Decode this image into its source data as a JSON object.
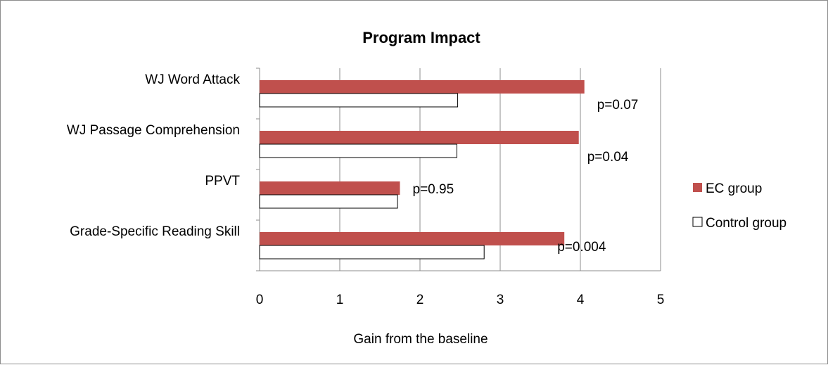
{
  "chart_data": {
    "type": "bar",
    "orientation": "horizontal",
    "title": "Program Impact",
    "xlabel": "Gain from the baseline",
    "ylabel": "",
    "xlim": [
      0,
      5
    ],
    "x_ticks": [
      "0",
      "1",
      "2",
      "3",
      "4",
      "5"
    ],
    "grid": true,
    "legend": "right",
    "categories": [
      "WJ Word Attack",
      "WJ Passage Comprehension",
      "PPVT",
      "Grade-Specific Reading Skill"
    ],
    "series": [
      {
        "name": "EC group",
        "values": [
          4.05,
          3.98,
          1.75,
          3.8
        ],
        "color": "#c0504d"
      },
      {
        "name": "Control group",
        "values": [
          2.47,
          2.46,
          1.72,
          2.8
        ],
        "color": "#ffffff"
      }
    ],
    "annotations": [
      "p=0.07",
      "p=0.04",
      "p=0.95",
      "p=0.004"
    ]
  }
}
